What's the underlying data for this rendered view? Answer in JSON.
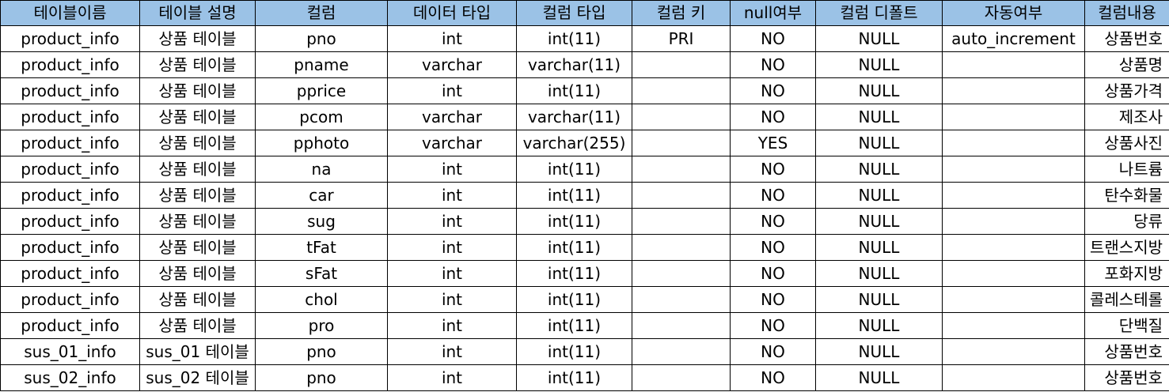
{
  "table": {
    "header_bg": "#9bc2e6",
    "columns": [
      "테이블이름",
      "테이블 설명",
      "컬럼",
      "데이터 타입",
      "컬럼 타입",
      "컬럼 키",
      "null여부",
      "컬럼 디폴트",
      "자동여부",
      "컬럼내용"
    ],
    "rows": [
      [
        "product_info",
        "상품 테이블",
        "pno",
        "int",
        "int(11)",
        "PRI",
        "NO",
        "NULL",
        "auto_increment",
        "상품번호"
      ],
      [
        "product_info",
        "상품 테이블",
        "pname",
        "varchar",
        "varchar(11)",
        "",
        "NO",
        "NULL",
        "",
        "상품명"
      ],
      [
        "product_info",
        "상품 테이블",
        "pprice",
        "int",
        "int(11)",
        "",
        "NO",
        "NULL",
        "",
        "상품가격"
      ],
      [
        "product_info",
        "상품 테이블",
        "pcom",
        "varchar",
        "varchar(11)",
        "",
        "NO",
        "NULL",
        "",
        "제조사"
      ],
      [
        "product_info",
        "상품 테이블",
        "pphoto",
        "varchar",
        "varchar(255)",
        "",
        "YES",
        "NULL",
        "",
        "상품사진"
      ],
      [
        "product_info",
        "상품 테이블",
        "na",
        "int",
        "int(11)",
        "",
        "NO",
        "NULL",
        "",
        "나트륨"
      ],
      [
        "product_info",
        "상품 테이블",
        "car",
        "int",
        "int(11)",
        "",
        "NO",
        "NULL",
        "",
        "탄수화물"
      ],
      [
        "product_info",
        "상품 테이블",
        "sug",
        "int",
        "int(11)",
        "",
        "NO",
        "NULL",
        "",
        "당류"
      ],
      [
        "product_info",
        "상품 테이블",
        "tFat",
        "int",
        "int(11)",
        "",
        "NO",
        "NULL",
        "",
        "트랜스지방"
      ],
      [
        "product_info",
        "상품 테이블",
        "sFat",
        "int",
        "int(11)",
        "",
        "NO",
        "NULL",
        "",
        "포화지방"
      ],
      [
        "product_info",
        "상품 테이블",
        "chol",
        "int",
        "int(11)",
        "",
        "NO",
        "NULL",
        "",
        "콜레스테롤"
      ],
      [
        "product_info",
        "상품 테이블",
        "pro",
        "int",
        "int(11)",
        "",
        "NO",
        "NULL",
        "",
        "단백질"
      ],
      [
        "sus_01_info",
        "sus_01 테이블",
        "pno",
        "int",
        "int(11)",
        "",
        "NO",
        "NULL",
        "",
        "상품번호"
      ],
      [
        "sus_02_info",
        "sus_02 테이블",
        "pno",
        "int",
        "int(11)",
        "",
        "NO",
        "NULL",
        "",
        "상품번호"
      ]
    ]
  }
}
